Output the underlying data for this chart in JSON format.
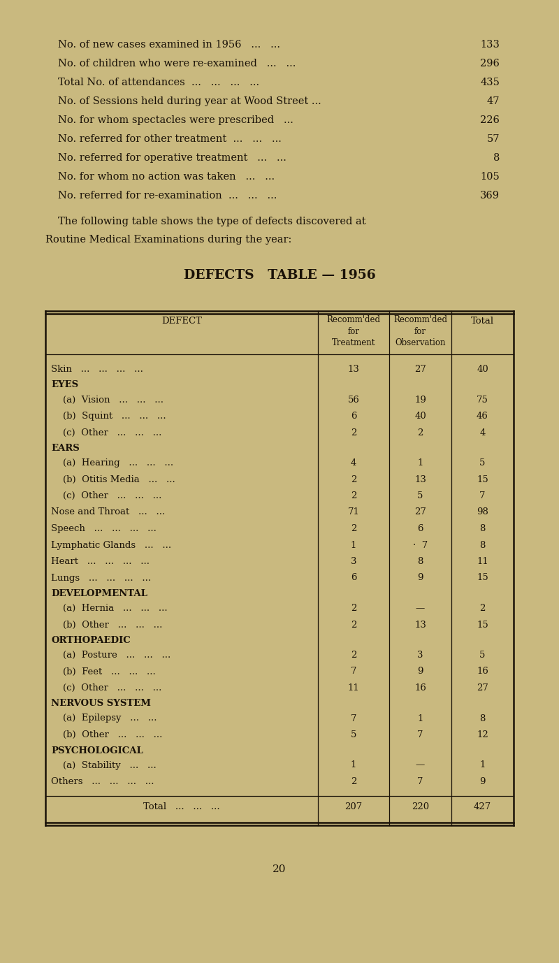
{
  "bg_color": "#c9b97f",
  "text_color": "#1a1208",
  "summary_lines": [
    [
      "No. of new cases examined in 1956   ...   ...",
      "133"
    ],
    [
      "No. of children who were re-examined   ...   ...",
      "296"
    ],
    [
      "Total No. of attendances  ...   ...   ...   ...",
      "435"
    ],
    [
      "No. of Sessions held during year at Wood Street ...",
      "47"
    ],
    [
      "No. for whom spectacles were prescribed   ...",
      "226"
    ],
    [
      "No. referred for other treatment  ...   ...   ...",
      "57"
    ],
    [
      "No. referred for operative treatment   ...   ...",
      "8"
    ],
    [
      "No. for whom no action was taken   ...   ...",
      "105"
    ],
    [
      "No. referred for re-examination  ...   ...   ...",
      "369"
    ]
  ],
  "para_line1": "The following table shows the type of defects discovered at",
  "para_line2": "Routine Medical Examinations during the year:",
  "table_title": "DEFECTS   TABLE — 1956",
  "rows": [
    {
      "label": "Skin   ...   ...   ...   ...",
      "treat": "13",
      "obs": "27",
      "total": "40",
      "type": "data"
    },
    {
      "label": "EYES",
      "treat": "",
      "obs": "",
      "total": "",
      "type": "section"
    },
    {
      "label": "    (a)  Vision   ...   ...   ...",
      "treat": "56",
      "obs": "19",
      "total": "75",
      "type": "data"
    },
    {
      "label": "    (b)  Squint   ...   ...   ...",
      "treat": "6",
      "obs": "40",
      "total": "46",
      "type": "data"
    },
    {
      "label": "    (c)  Other   ...   ...   ...",
      "treat": "2",
      "obs": "2",
      "total": "4",
      "type": "data"
    },
    {
      "label": "EARS",
      "treat": "",
      "obs": "",
      "total": "",
      "type": "section"
    },
    {
      "label": "    (a)  Hearing   ...   ...   ...",
      "treat": "4",
      "obs": "1",
      "total": "5",
      "type": "data"
    },
    {
      "label": "    (b)  Otitis Media   ...   ...",
      "treat": "2",
      "obs": "13",
      "total": "15",
      "type": "data"
    },
    {
      "label": "    (c)  Other   ...   ...   ...",
      "treat": "2",
      "obs": "5",
      "total": "7",
      "type": "data"
    },
    {
      "label": "Nose and Throat   ...   ...",
      "treat": "71",
      "obs": "27",
      "total": "98",
      "type": "data"
    },
    {
      "label": "Speech   ...   ...   ...   ...",
      "treat": "2",
      "obs": "6",
      "total": "8",
      "type": "data"
    },
    {
      "label": "Lymphatic Glands   ...   ...",
      "treat": "1",
      "obs": "·  7",
      "total": "8",
      "type": "data"
    },
    {
      "label": "Heart   ...   ...   ...   ...",
      "treat": "3",
      "obs": "8",
      "total": "11",
      "type": "data"
    },
    {
      "label": "Lungs   ...   ...   ...   ...",
      "treat": "6",
      "obs": "9",
      "total": "15",
      "type": "data"
    },
    {
      "label": "DEVELOPMENTAL",
      "treat": "",
      "obs": "",
      "total": "",
      "type": "section"
    },
    {
      "label": "    (a)  Hernia   ...   ...   ...",
      "treat": "2",
      "obs": "—",
      "total": "2",
      "type": "data"
    },
    {
      "label": "    (b)  Other   ...   ...   ...",
      "treat": "2",
      "obs": "13",
      "total": "15",
      "type": "data"
    },
    {
      "label": "ORTHOPAEDIC",
      "treat": "",
      "obs": "",
      "total": "",
      "type": "section"
    },
    {
      "label": "    (a)  Posture   ...   ...   ...",
      "treat": "2",
      "obs": "3",
      "total": "5",
      "type": "data"
    },
    {
      "label": "    (b)  Feet   ...   ...   ...",
      "treat": "7",
      "obs": "9",
      "total": "16",
      "type": "data"
    },
    {
      "label": "    (c)  Other   ...   ...   ...",
      "treat": "11",
      "obs": "16",
      "total": "27",
      "type": "data"
    },
    {
      "label": "NERVOUS SYSTEM",
      "treat": "",
      "obs": "",
      "total": "",
      "type": "section"
    },
    {
      "label": "    (a)  Epilepsy   ...   ...",
      "treat": "7",
      "obs": "1",
      "total": "8",
      "type": "data"
    },
    {
      "label": "    (b)  Other   ...   ...   ...",
      "treat": "5",
      "obs": "7",
      "total": "12",
      "type": "data"
    },
    {
      "label": "PSYCHOLOGICAL",
      "treat": "",
      "obs": "",
      "total": "",
      "type": "section"
    },
    {
      "label": "    (a)  Stability   ...   ...",
      "treat": "1",
      "obs": "—",
      "total": "1",
      "type": "data"
    },
    {
      "label": "Others   ...   ...   ...   ...",
      "treat": "2",
      "obs": "7",
      "total": "9",
      "type": "data"
    }
  ],
  "total_row": [
    "Total   ...   ...   ...",
    "207",
    "220",
    "427"
  ],
  "page_number": "20",
  "figsize": [
    8.0,
    13.78
  ],
  "dpi": 100
}
